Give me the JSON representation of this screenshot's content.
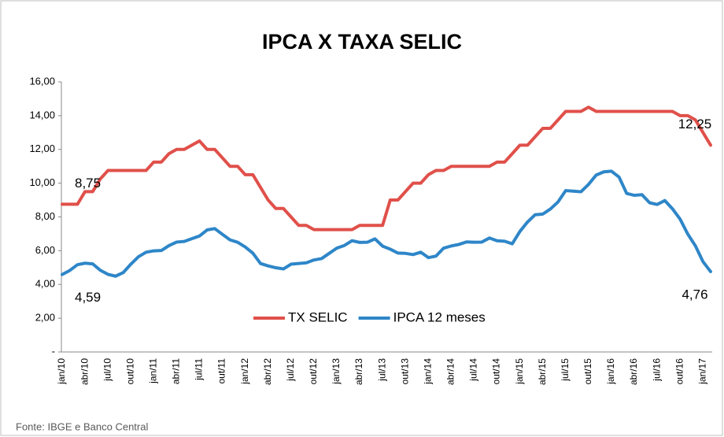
{
  "chart_data": {
    "type": "line",
    "title": "IPCA X TAXA SELIC",
    "source": "Fonte: IBGE e Banco Central",
    "categories": [
      "jan/10",
      null,
      null,
      "abr/10",
      null,
      null,
      "jul/10",
      null,
      null,
      "out/10",
      null,
      null,
      "jan/11",
      null,
      null,
      "abr/11",
      null,
      null,
      "jul/11",
      null,
      null,
      "out/11",
      null,
      null,
      "jan/12",
      null,
      null,
      "abr/12",
      null,
      null,
      "jul/12",
      null,
      null,
      "out/12",
      null,
      null,
      "jan/13",
      null,
      null,
      "abr/13",
      null,
      null,
      "jul/13",
      null,
      null,
      "out/13",
      null,
      null,
      "jan/14",
      null,
      null,
      "abr/14",
      null,
      null,
      "jul/14",
      null,
      null,
      "out/14",
      null,
      null,
      "jan/15",
      null,
      null,
      "abr/15",
      null,
      null,
      "jul/15",
      null,
      null,
      "out/15",
      null,
      null,
      "jan/16",
      null,
      null,
      "abr/16",
      null,
      null,
      "jul/16",
      null,
      null,
      "out/16",
      null,
      null,
      "jan/17",
      null
    ],
    "series": [
      {
        "name": "TX SELIC",
        "color": "#e0504a",
        "values": [
          8.75,
          8.75,
          8.75,
          9.5,
          9.5,
          10.25,
          10.75,
          10.75,
          10.75,
          10.75,
          10.75,
          10.75,
          11.25,
          11.25,
          11.75,
          12,
          12,
          12.25,
          12.5,
          12,
          12,
          11.5,
          11,
          11,
          10.5,
          10.5,
          9.75,
          9,
          8.5,
          8.5,
          8,
          7.5,
          7.5,
          7.25,
          7.25,
          7.25,
          7.25,
          7.25,
          7.25,
          7.5,
          7.5,
          7.5,
          7.5,
          9,
          9,
          9.5,
          10,
          10,
          10.5,
          10.75,
          10.75,
          11,
          11,
          11,
          11,
          11,
          11,
          11.25,
          11.25,
          11.75,
          12.25,
          12.25,
          12.75,
          13.25,
          13.25,
          13.75,
          14.25,
          14.25,
          14.25,
          14.5,
          14.25,
          14.25,
          14.25,
          14.25,
          14.25,
          14.25,
          14.25,
          14.25,
          14.25,
          14.25,
          14.25,
          14,
          14,
          13.75,
          13,
          12.25
        ],
        "value_labels": [
          "8,75",
          null,
          null,
          null,
          null,
          null,
          null,
          null,
          null,
          null,
          null,
          null,
          null,
          null,
          null,
          null,
          null,
          null,
          null,
          null,
          null,
          null,
          null,
          null,
          null,
          null,
          null,
          null,
          null,
          null,
          null,
          null,
          null,
          null,
          null,
          null,
          null,
          null,
          null,
          null,
          null,
          null,
          null,
          null,
          null,
          null,
          null,
          null,
          null,
          null,
          null,
          null,
          null,
          null,
          null,
          null,
          null,
          null,
          null,
          null,
          null,
          null,
          null,
          null,
          null,
          null,
          null,
          null,
          null,
          null,
          null,
          null,
          null,
          null,
          null,
          null,
          null,
          null,
          null,
          null,
          null,
          null,
          null,
          null,
          null,
          "12,25"
        ]
      },
      {
        "name": "IPCA 12 meses",
        "color": "#2e86c8",
        "values": [
          4.59,
          4.83,
          5.17,
          5.26,
          5.22,
          4.84,
          4.6,
          4.49,
          4.7,
          5.2,
          5.64,
          5.91,
          5.99,
          6.01,
          6.3,
          6.51,
          6.55,
          6.71,
          6.87,
          7.23,
          7.31,
          6.97,
          6.64,
          6.5,
          6.22,
          5.85,
          5.24,
          5.1,
          4.99,
          4.92,
          5.2,
          5.24,
          5.28,
          5.45,
          5.53,
          5.84,
          6.15,
          6.31,
          6.59,
          6.49,
          6.5,
          6.7,
          6.27,
          6.09,
          5.86,
          5.84,
          5.77,
          5.91,
          5.59,
          5.68,
          6.15,
          6.28,
          6.37,
          6.52,
          6.5,
          6.51,
          6.75,
          6.59,
          6.56,
          6.41,
          7.14,
          7.7,
          8.13,
          8.17,
          8.47,
          8.89,
          9.56,
          9.53,
          9.49,
          9.93,
          10.48,
          10.67,
          10.71,
          10.36,
          9.39,
          9.28,
          9.32,
          8.84,
          8.74,
          8.97,
          8.48,
          7.87,
          6.99,
          6.29,
          5.35,
          4.76
        ],
        "value_labels": [
          "4,59",
          null,
          null,
          null,
          null,
          null,
          null,
          null,
          null,
          null,
          null,
          null,
          null,
          null,
          null,
          null,
          null,
          null,
          null,
          null,
          null,
          null,
          null,
          null,
          null,
          null,
          null,
          null,
          null,
          null,
          null,
          null,
          null,
          null,
          null,
          null,
          null,
          null,
          null,
          null,
          null,
          null,
          null,
          null,
          null,
          null,
          null,
          null,
          null,
          null,
          null,
          null,
          null,
          null,
          null,
          null,
          null,
          null,
          null,
          null,
          null,
          null,
          null,
          null,
          null,
          null,
          null,
          null,
          null,
          null,
          null,
          null,
          null,
          null,
          null,
          null,
          null,
          null,
          null,
          null,
          null,
          null,
          null,
          null,
          null,
          "4,76"
        ]
      }
    ],
    "ylim": [
      0,
      16
    ],
    "yticks": [
      {
        "value": 0,
        "label": "-"
      },
      {
        "value": 2,
        "label": "2,00"
      },
      {
        "value": 4,
        "label": "4,00"
      },
      {
        "value": 6,
        "label": "6,00"
      },
      {
        "value": 8,
        "label": "8,00"
      },
      {
        "value": 10,
        "label": "10,00"
      },
      {
        "value": 12,
        "label": "12,00"
      },
      {
        "value": 14,
        "label": "14,00"
      },
      {
        "value": 16,
        "label": "16,00"
      }
    ],
    "grid": false,
    "legend": "bottom"
  }
}
